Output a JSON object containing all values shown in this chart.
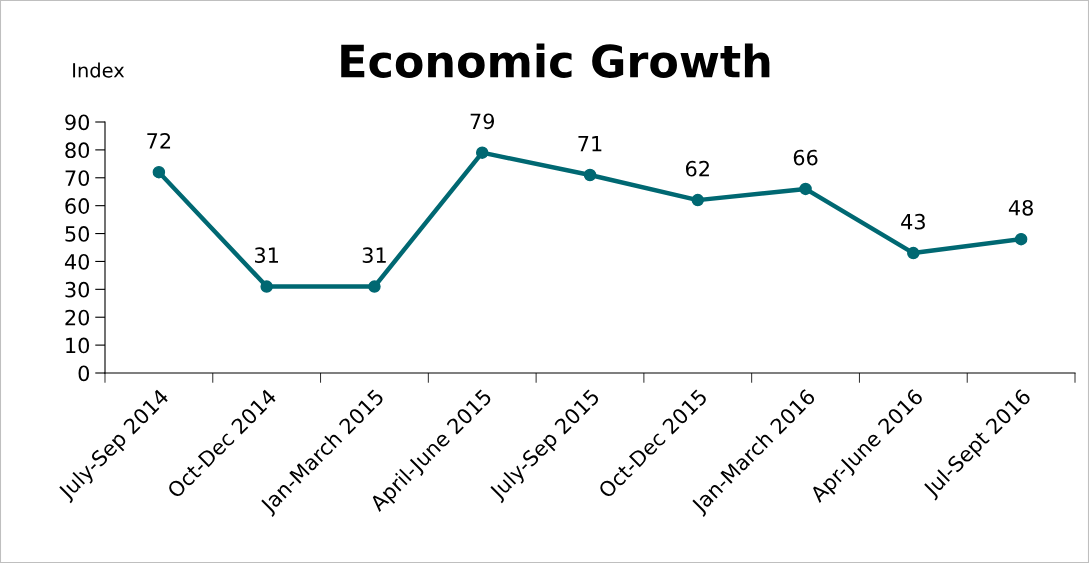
{
  "chart_data": {
    "type": "line",
    "title": "Economic Growth",
    "ylabel": "Index",
    "categories": [
      "July-Sep 2014",
      "Oct-Dec 2014",
      "Jan-March 2015",
      "April-June 2015",
      "July-Sep 2015",
      "Oct-Dec 2015",
      "Jan-March 2016",
      "Apr-June 2016",
      "Jul-Sept 2016"
    ],
    "series": [
      {
        "color": "#006872",
        "values": [
          72,
          31,
          31,
          79,
          71,
          62,
          66,
          43,
          48
        ]
      }
    ],
    "ylim": [
      0,
      90
    ],
    "yticks": [
      0,
      10,
      20,
      30,
      40,
      50,
      60,
      70,
      80,
      90
    ],
    "grid": false,
    "legend": false,
    "marker": "circle",
    "line_style": "solid",
    "data_labels": true
  }
}
